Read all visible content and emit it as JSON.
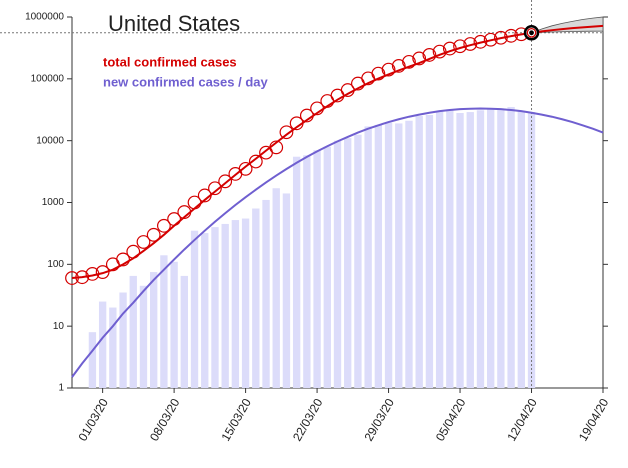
{
  "chart_data": {
    "type": "bar",
    "title": "United States",
    "log_scale": true,
    "x": [
      "27/02/20",
      "28/02/20",
      "29/02/20",
      "01/03/20",
      "02/03/20",
      "03/03/20",
      "04/03/20",
      "05/03/20",
      "06/03/20",
      "07/03/20",
      "08/03/20",
      "09/03/20",
      "10/03/20",
      "11/03/20",
      "12/03/20",
      "13/03/20",
      "14/03/20",
      "15/03/20",
      "16/03/20",
      "17/03/20",
      "18/03/20",
      "19/03/20",
      "20/03/20",
      "21/03/20",
      "22/03/20",
      "23/03/20",
      "24/03/20",
      "25/03/20",
      "26/03/20",
      "27/03/20",
      "28/03/20",
      "29/03/20",
      "30/03/20",
      "31/03/20",
      "01/04/20",
      "02/04/20",
      "03/04/20",
      "04/04/20",
      "05/04/20",
      "06/04/20",
      "07/04/20",
      "08/04/20",
      "09/04/20",
      "10/04/20",
      "11/04/20",
      "12/04/20",
      "13/04/20",
      "14/04/20",
      "15/04/20",
      "16/04/20",
      "17/04/20",
      "18/04/20",
      "19/04/20"
    ],
    "series": [
      {
        "name": "total confirmed cases",
        "mark": "circle",
        "color": "#d40000",
        "values": [
          60,
          62,
          70,
          75,
          100,
          120,
          160,
          230,
          300,
          420,
          540,
          700,
          1000,
          1300,
          1700,
          2200,
          2900,
          3500,
          4600,
          6400,
          7800,
          13700,
          19100,
          25500,
          33300,
          43800,
          53700,
          65800,
          83800,
          101700,
          121500,
          140900,
          161800,
          188200,
          213600,
          243600,
          275600,
          309000,
          336800,
          366300,
          397000,
          429000,
          461400,
          496500,
          526400,
          555300,
          null,
          null,
          null,
          null,
          null,
          null,
          null
        ],
        "fit": [
          60,
          62,
          66,
          72,
          82,
          100,
          125,
          165,
          220,
          300,
          420,
          580,
          800,
          1100,
          1500,
          2050,
          2800,
          3800,
          5100,
          6900,
          9300,
          12500,
          16500,
          21500,
          28000,
          36000,
          46000,
          57000,
          70000,
          85000,
          101000,
          118000,
          137000,
          157000,
          180000,
          210000,
          245000,
          280000,
          315000,
          350000,
          385000,
          420000,
          455000,
          490000,
          523000,
          555000,
          585000,
          612000,
          637000,
          660000,
          681000,
          700000,
          717000
        ],
        "fit_lower": [
          null,
          null,
          null,
          null,
          null,
          null,
          null,
          null,
          null,
          null,
          null,
          null,
          null,
          null,
          null,
          null,
          null,
          null,
          null,
          null,
          null,
          null,
          null,
          null,
          null,
          null,
          null,
          null,
          null,
          null,
          null,
          null,
          null,
          null,
          null,
          null,
          null,
          null,
          null,
          null,
          null,
          null,
          null,
          null,
          null,
          555000,
          565000,
          572000,
          578000,
          583000,
          587000,
          590000,
          592000
        ],
        "fit_upper": [
          null,
          null,
          null,
          null,
          null,
          null,
          null,
          null,
          null,
          null,
          null,
          null,
          null,
          null,
          null,
          null,
          null,
          null,
          null,
          null,
          null,
          null,
          null,
          null,
          null,
          null,
          null,
          null,
          null,
          null,
          null,
          null,
          null,
          null,
          null,
          null,
          null,
          null,
          null,
          null,
          null,
          null,
          null,
          null,
          null,
          555000,
          640000,
          720000,
          790000,
          850000,
          910000,
          960000,
          1000000
        ],
        "band_color": "#d8d8d8"
      },
      {
        "name": "new confirmed cases / day",
        "mark": "bar",
        "color": "#6f5fd0",
        "bar_color": "#dcdcfa",
        "values": [
          null,
          null,
          8,
          25,
          20,
          35,
          65,
          45,
          75,
          140,
          110,
          65,
          350,
          320,
          400,
          450,
          520,
          550,
          800,
          1100,
          1700,
          1400,
          5500,
          5800,
          7000,
          8000,
          10000,
          11000,
          12500,
          17000,
          18000,
          19500,
          19000,
          21000,
          25000,
          26000,
          30000,
          32000,
          28000,
          29000,
          31000,
          32000,
          32000,
          35000,
          30000,
          29000,
          null,
          null,
          null,
          null,
          null,
          null,
          null
        ],
        "fit": [
          1.5,
          2.5,
          4,
          6.5,
          10,
          16,
          24,
          37,
          56,
          82,
          120,
          174,
          248,
          350,
          488,
          670,
          910,
          1220,
          1610,
          2110,
          2730,
          3480,
          4390,
          5460,
          6700,
          8130,
          9750,
          11500,
          13500,
          15600,
          17700,
          20000,
          22200,
          24400,
          26400,
          28300,
          30000,
          31300,
          32300,
          32900,
          33100,
          32900,
          32300,
          31300,
          30000,
          28300,
          26400,
          24400,
          22200,
          20000,
          17700,
          15600,
          13500
        ]
      }
    ],
    "xlim": [
      "27/02/20",
      "19/04/20"
    ],
    "xticks": [
      "01/03/20",
      "08/03/20",
      "15/03/20",
      "22/03/20",
      "29/03/20",
      "05/04/20",
      "12/04/20",
      "19/04/20"
    ],
    "ylim": [
      1,
      1000000
    ],
    "yticks": [
      1,
      10,
      100,
      1000,
      10000,
      100000,
      1000000
    ]
  }
}
